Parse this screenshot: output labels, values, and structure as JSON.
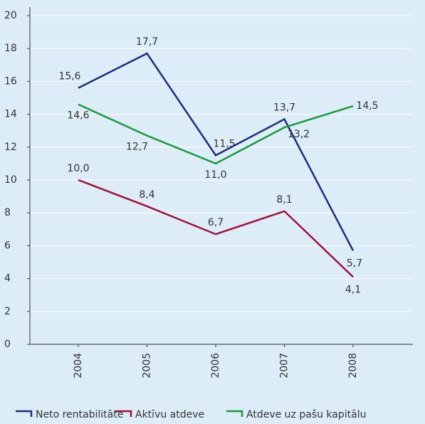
{
  "chart_data": {
    "type": "line",
    "categories": [
      "2004",
      "2005",
      "2006",
      "2007",
      "2008"
    ],
    "series": [
      {
        "name": "Neto rentabilitāte",
        "color": "#1f2c7c",
        "values": [
          15.6,
          17.7,
          11.5,
          13.7,
          5.7
        ],
        "value_labels": [
          "15,6",
          "17,7",
          "11,5",
          "13,7",
          "5,7"
        ]
      },
      {
        "name": "Aktīvu atdeve",
        "color": "#a3103c",
        "values": [
          10.0,
          8.4,
          6.7,
          8.1,
          4.1
        ],
        "value_labels": [
          "10,0",
          "8,4",
          "6,7",
          "8,1",
          "4,1"
        ]
      },
      {
        "name": "Atdeve uz pašu kapitālu",
        "color": "#1a9a3a",
        "values": [
          14.6,
          12.7,
          11.0,
          13.2,
          14.5
        ],
        "value_labels": [
          "14,6",
          "12,7",
          "11,0",
          "13,2",
          "14,5"
        ]
      }
    ],
    "ylim": [
      0,
      20
    ],
    "yticks": [
      0,
      2,
      4,
      6,
      8,
      10,
      12,
      14,
      16,
      18,
      20
    ],
    "grid": true
  }
}
